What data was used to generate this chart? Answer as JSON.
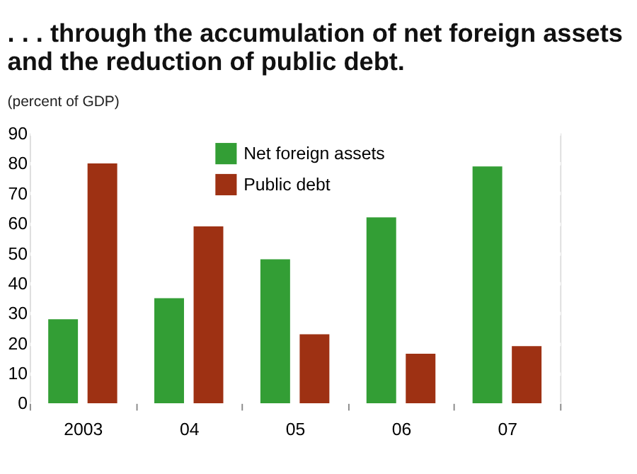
{
  "chart_data": {
    "type": "bar",
    "title": ". . . through the accumulation of net foreign assets\nand the reduction of public debt.",
    "ylabel": "(percent of GDP)",
    "categories": [
      "2003",
      "04",
      "05",
      "06",
      "07"
    ],
    "series": [
      {
        "name": "Net foreign assets",
        "color": "#339e35",
        "values": [
          28,
          35,
          48,
          62,
          79
        ]
      },
      {
        "name": "Public debt",
        "color": "#9e3113",
        "values": [
          80,
          59,
          23,
          16.5,
          19
        ]
      }
    ],
    "ylim": [
      0,
      90
    ],
    "yticks": [
      0,
      10,
      20,
      30,
      40,
      50,
      60,
      70,
      80,
      90
    ],
    "grid": "y",
    "legend": "top"
  }
}
